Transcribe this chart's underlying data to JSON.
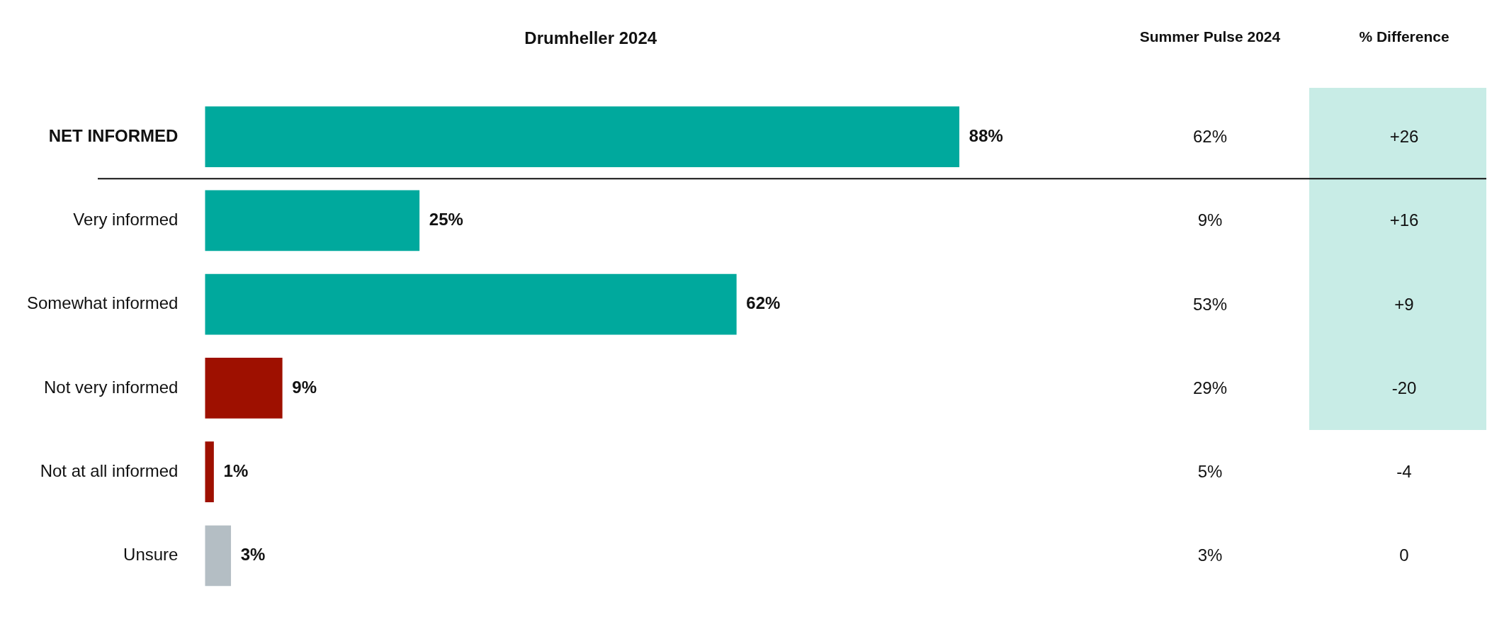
{
  "chart_data": {
    "type": "bar",
    "orientation": "horizontal",
    "title": "Drumheller 2024",
    "categories": [
      "NET INFORMED",
      "Very informed",
      "Somewhat informed",
      "Not very informed",
      "Not at all informed",
      "Unsure"
    ],
    "values": [
      88,
      25,
      62,
      9,
      1,
      3
    ],
    "colors": [
      "#00a99d",
      "#00a99d",
      "#00a99d",
      "#9e1000",
      "#9e1000",
      "#b4bec4"
    ],
    "value_labels": [
      "88%",
      "25%",
      "62%",
      "9%",
      "1%",
      "3%"
    ],
    "tick_labels": "y",
    "annotations": [
      "Summer Pulse 2024",
      "% Difference",
      "62%",
      "+26",
      "9%",
      "+16",
      "53%",
      "+9",
      "29%",
      "-20",
      "5%",
      "-4",
      "3%",
      "0"
    ]
  }
}
